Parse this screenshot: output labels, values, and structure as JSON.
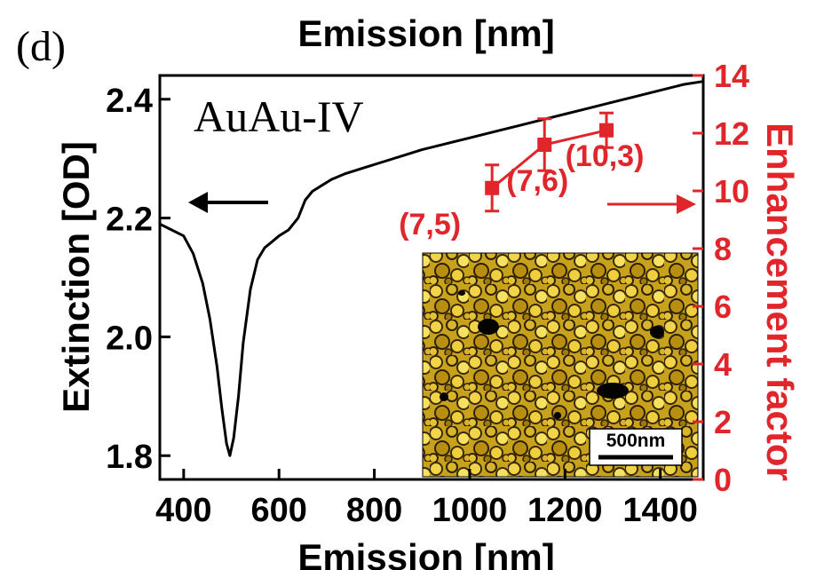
{
  "panel_label": "(d)",
  "sample_label": "AuAu-IV",
  "scale_bar_label": "500nm",
  "chart_data": {
    "type": "line",
    "title": "Emission [nm]",
    "xlabel": "Emission [nm]",
    "ylabel": "Extinction [OD]",
    "y2label": "Enhancement factor",
    "xlim": [
      350,
      1490
    ],
    "ylim": [
      1.76,
      2.44
    ],
    "y2lim": [
      0,
      14
    ],
    "x_ticks": [
      400,
      600,
      800,
      1000,
      1200,
      1400
    ],
    "y_ticks": [
      1.8,
      2.0,
      2.2,
      2.4
    ],
    "y2_ticks": [
      0,
      2,
      4,
      6,
      8,
      10,
      12,
      14
    ],
    "grid": false,
    "colors": {
      "extinction": "#000000",
      "enhancement": "#e0262b"
    },
    "series": [
      {
        "axis": "left",
        "x": [
          350,
          375,
          400,
          420,
          440,
          455,
          470,
          480,
          490,
          497,
          505,
          515,
          525,
          540,
          555,
          570,
          585,
          600,
          620,
          640,
          655,
          670,
          690,
          710,
          740,
          780,
          820,
          860,
          900,
          950,
          1000,
          1050,
          1100,
          1150,
          1200,
          1250,
          1300,
          1350,
          1400,
          1450,
          1490
        ],
        "y": [
          2.19,
          2.18,
          2.17,
          2.14,
          2.09,
          2.03,
          1.95,
          1.88,
          1.82,
          1.8,
          1.83,
          1.9,
          1.99,
          2.08,
          2.13,
          2.15,
          2.16,
          2.17,
          2.18,
          2.2,
          2.23,
          2.245,
          2.255,
          2.265,
          2.275,
          2.285,
          2.295,
          2.305,
          2.315,
          2.325,
          2.335,
          2.345,
          2.355,
          2.365,
          2.375,
          2.385,
          2.395,
          2.405,
          2.415,
          2.425,
          2.43
        ]
      },
      {
        "axis": "right",
        "x": [
          1047,
          1157,
          1287
        ],
        "y": [
          10.1,
          11.6,
          12.1
        ],
        "y_err": [
          0.8,
          0.9,
          0.6
        ],
        "point_labels": [
          "(7,5)",
          "(7,6)",
          "(10,3)"
        ]
      }
    ]
  }
}
